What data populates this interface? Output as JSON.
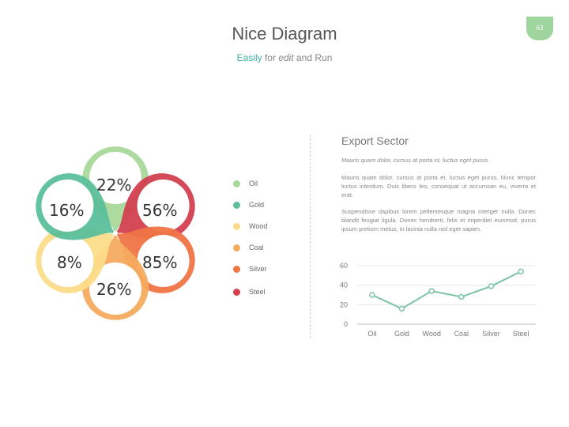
{
  "page_number": "63",
  "header": {
    "title": "Nice Diagram",
    "subtitle_accent": "Easily",
    "subtitle_mid": " for ",
    "subtitle_em": "edit",
    "subtitle_end": " and Run"
  },
  "flower": {
    "petals": [
      {
        "label": "22%",
        "color": "#a8d89a"
      },
      {
        "label": "56%",
        "color": "#d2404f"
      },
      {
        "label": "85%",
        "color": "#ef7444"
      },
      {
        "label": "26%",
        "color": "#f6ab5e"
      },
      {
        "label": "8%",
        "color": "#fcdc8a"
      },
      {
        "label": "16%",
        "color": "#5bbf9a"
      }
    ]
  },
  "legend": [
    {
      "label": "Oil",
      "color": "#a8d89a"
    },
    {
      "label": "Gold",
      "color": "#5bbf9a"
    },
    {
      "label": "Wood",
      "color": "#fcdc8a"
    },
    {
      "label": "Coal",
      "color": "#f6ab5e"
    },
    {
      "label": "Silver",
      "color": "#ef7444"
    },
    {
      "label": "Steel",
      "color": "#d2404f"
    }
  ],
  "sector": {
    "title": "Export Sector",
    "lead": "Mauris quam dolor, cursus at porta et, luctus eget purus.",
    "p1": "Mauris quam dolor, cursus at porta et, luctus eget purus. Nunc tempor luctus interdum. Duis libero leo, consequat ut accumsan eu, viverra et erat.",
    "p2": "Suspendisse dapibus lorem pellentesque magna interger nulla. Donec blandit feugiat ligula. Donec hendrerit, felis et imperdiet euismod, purus ipsum pretium metus, in lacinia nulla nisl eget sapien."
  },
  "chart_data": {
    "type": "line",
    "categories": [
      "Oil",
      "Gold",
      "Wood",
      "Coal",
      "Silver",
      "Steel"
    ],
    "series": [
      {
        "values": [
          30,
          16,
          34,
          28,
          39,
          54
        ]
      }
    ],
    "ylim": [
      0,
      60
    ],
    "yticks": [
      0,
      20,
      40,
      60
    ],
    "xlabel": "",
    "ylabel": "",
    "grid": true,
    "color": "#7cc4a4"
  }
}
